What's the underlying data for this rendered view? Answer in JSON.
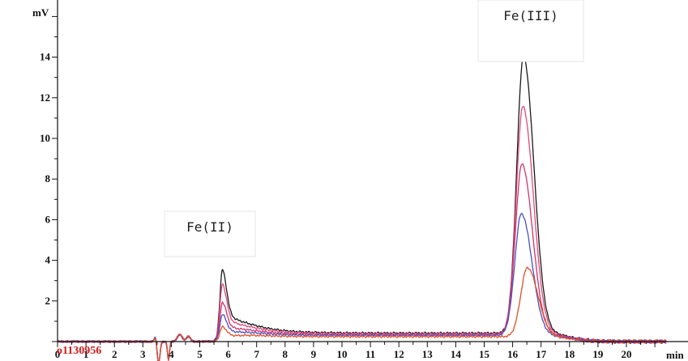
{
  "chart_data": {
    "type": "line",
    "title": "",
    "ylabel": "mV",
    "xlabel": "min",
    "sample_id": "o1130956",
    "xlim": [
      0,
      21.4
    ],
    "ylim": [
      -0.8,
      16.5
    ],
    "x_ticks": [
      0,
      1,
      2,
      3,
      4,
      5,
      6,
      7,
      8,
      9,
      10,
      11,
      12,
      13,
      14,
      15,
      16,
      17,
      18,
      19,
      20
    ],
    "y_ticks": [
      2,
      4,
      6,
      8,
      10,
      12,
      14
    ],
    "annotations": [
      {
        "text": "Fe(II)",
        "peak_x": 5.8
      },
      {
        "text": "Fe(III)",
        "peak_x": 16.35
      }
    ],
    "series": [
      {
        "color": "#1a1a1a",
        "fe2_height": 3.5,
        "fe3_height": 13.6,
        "baseline": 0.42,
        "fe3_center": 16.38
      },
      {
        "color": "#e0487c",
        "fe2_height": 2.8,
        "fe3_height": 11.2,
        "baseline": 0.38,
        "fe3_center": 16.36
      },
      {
        "color": "#d4326a",
        "fe2_height": 1.9,
        "fe3_height": 8.4,
        "baseline": 0.34,
        "fe3_center": 16.33
      },
      {
        "color": "#4a4fc4",
        "fe2_height": 1.3,
        "fe3_height": 6.0,
        "baseline": 0.3,
        "fe3_center": 16.31
      },
      {
        "color": "#e0502a",
        "fe2_height": 0.7,
        "fe3_height": 3.4,
        "baseline": 0.24,
        "fe3_center": 16.52
      }
    ]
  }
}
